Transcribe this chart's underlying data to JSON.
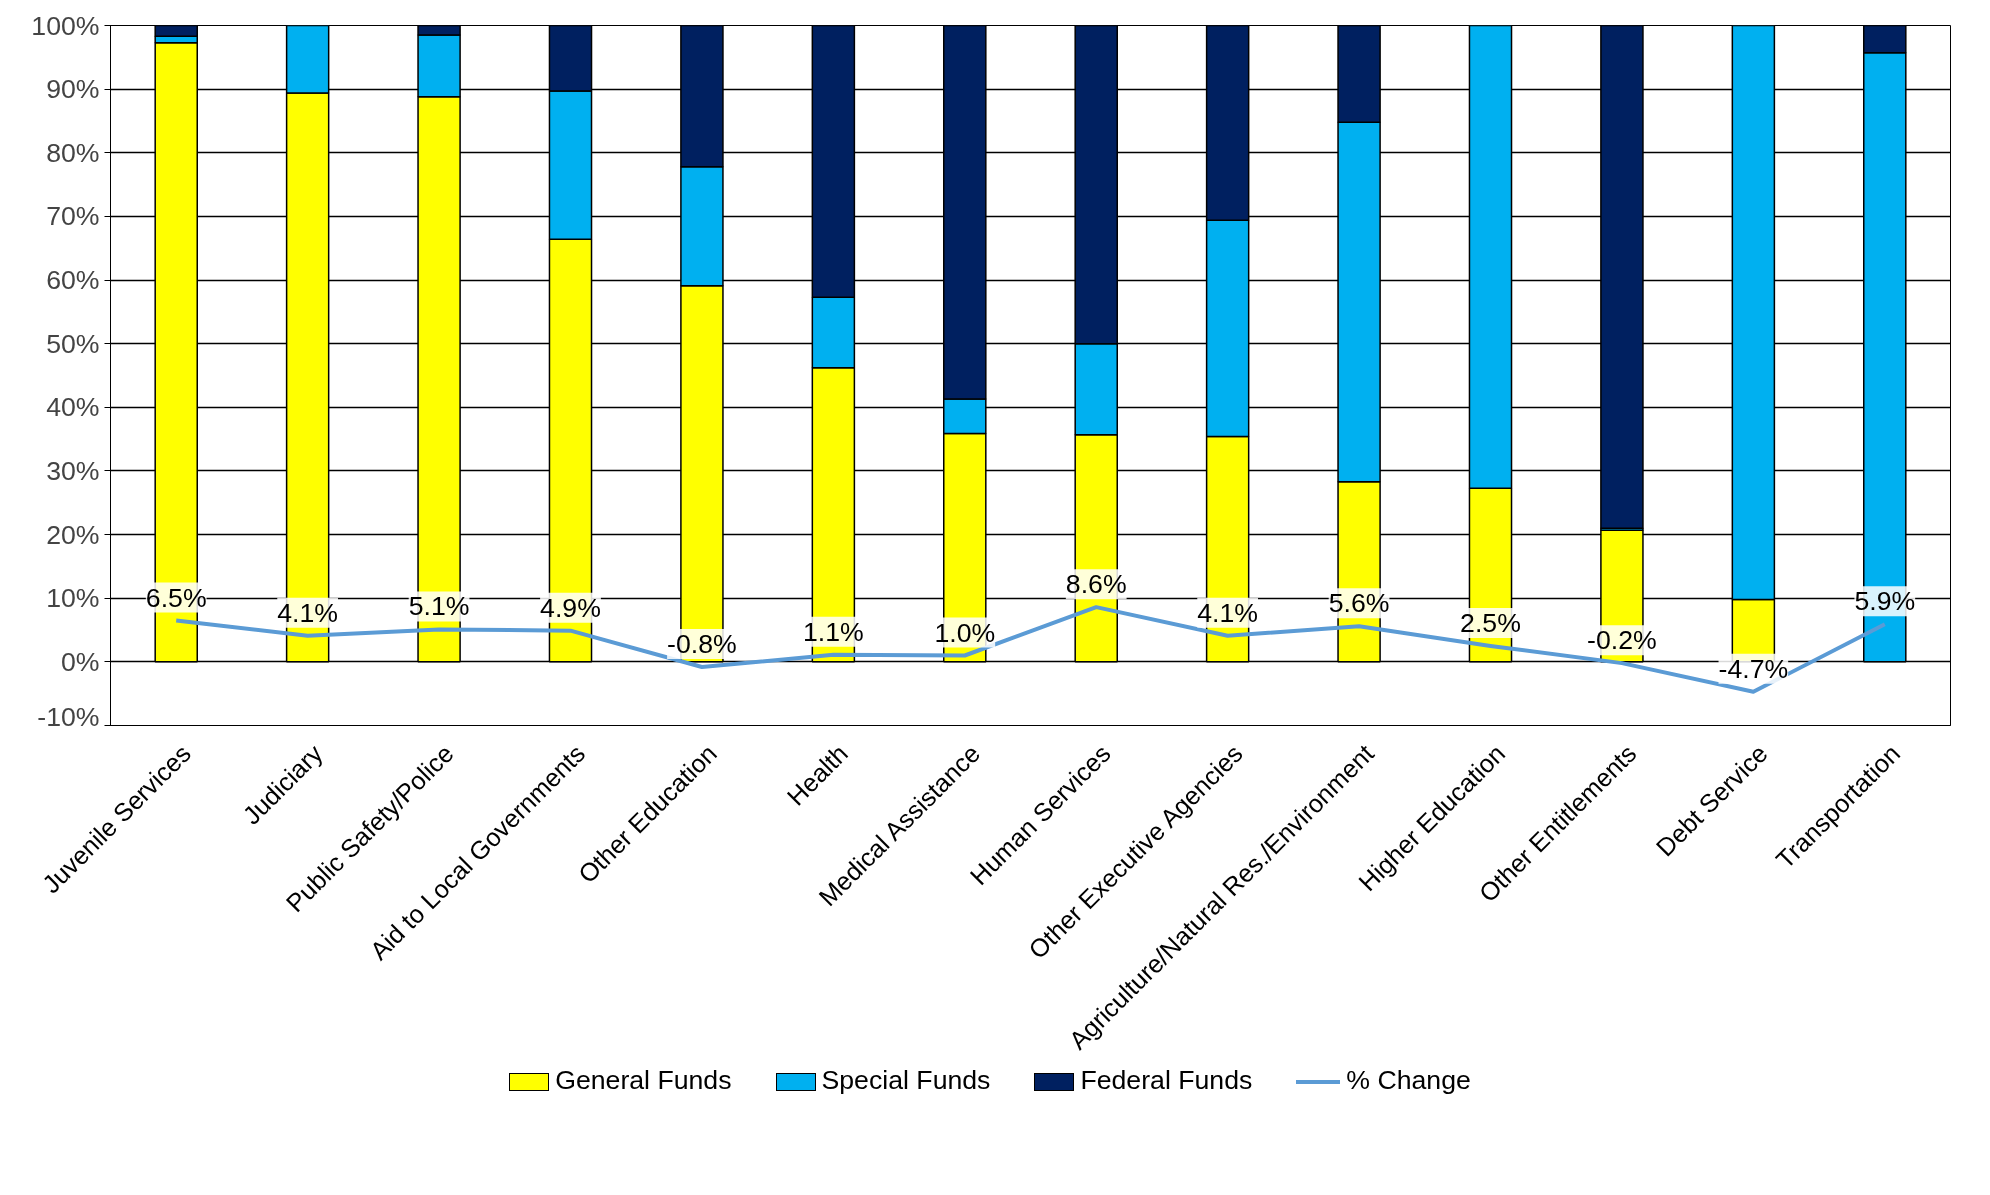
{
  "chart_data": {
    "type": "bar",
    "stacked": true,
    "categories": [
      "Juvenile Services",
      "Judiciary",
      "Public Safety/Police",
      "Aid to Local Governments",
      "Other Education",
      "Health",
      "Medical Assistance",
      "Human Services",
      "Other Executive Agencies",
      "Agriculture/Natural Res./Environment",
      "Higher Education",
      "Other Entitlements",
      "Debt Service",
      "Transportation"
    ],
    "series": [
      {
        "name": "General Funds",
        "color": "#ffff00",
        "values": [
          97.3,
          89.4,
          88.8,
          66.4,
          59.1,
          46.2,
          35.9,
          35.7,
          35.4,
          28.3,
          27.3,
          20.7,
          9.8,
          0
        ]
      },
      {
        "name": "Special Funds",
        "color": "#00b0f0",
        "values": [
          1.0,
          10.6,
          9.7,
          23.3,
          18.7,
          11.1,
          5.4,
          14.3,
          34.0,
          56.5,
          72.7,
          0.3,
          90.2,
          95.7
        ]
      },
      {
        "name": "Federal Funds",
        "color": "#002060",
        "values": [
          1.7,
          0,
          1.5,
          10.3,
          22.2,
          42.7,
          58.7,
          50.0,
          30.6,
          15.2,
          0,
          79.0,
          0,
          4.3
        ]
      },
      {
        "name": "% Change",
        "type": "line",
        "color": "#5b9bd5",
        "values": [
          6.5,
          4.1,
          5.1,
          4.9,
          -0.8,
          1.1,
          1.0,
          8.6,
          4.1,
          5.6,
          2.5,
          -0.2,
          -4.7,
          5.9
        ],
        "value_labels": [
          "6.5%",
          "4.1%",
          "5.1%",
          "4.9%",
          "-0.8%",
          "1.1%",
          "1.0%",
          "8.6%",
          "4.1%",
          "5.6%",
          "2.5%",
          "-0.2%",
          "-4.7%",
          "5.9%"
        ]
      }
    ],
    "ylim": [
      -10,
      100
    ],
    "yticks": [
      {
        "value": -10,
        "label": "-10%"
      },
      {
        "value": 0,
        "label": "0%"
      },
      {
        "value": 10,
        "label": "10%"
      },
      {
        "value": 20,
        "label": "20%"
      },
      {
        "value": 30,
        "label": "30%"
      },
      {
        "value": 40,
        "label": "40%"
      },
      {
        "value": 50,
        "label": "50%"
      },
      {
        "value": 60,
        "label": "60%"
      },
      {
        "value": 70,
        "label": "70%"
      },
      {
        "value": 80,
        "label": "80%"
      },
      {
        "value": 90,
        "label": "90%"
      },
      {
        "value": 100,
        "label": "100%"
      }
    ],
    "grid": "y",
    "legend": "bottom",
    "marker": "none",
    "line_style": "solid"
  }
}
